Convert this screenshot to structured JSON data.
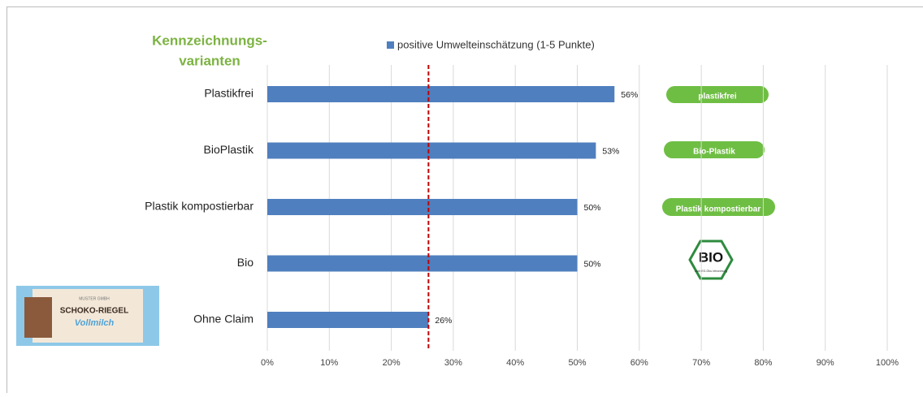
{
  "chart_data": {
    "type": "hbar",
    "title_lines": [
      "Kennzeichnungs-",
      "varianten"
    ],
    "categories": [
      "Plastikfrei",
      "BioPlastik",
      "Plastik kompostierbar",
      "Bio",
      "Ohne Claim"
    ],
    "series": [
      {
        "name": "positive Umwelteinschätzung (1-5 Punkte)",
        "color": "#4f7fbe",
        "values": [
          56,
          53,
          50,
          50,
          26
        ],
        "value_labels": [
          "56%",
          "53%",
          "50%",
          "50%",
          "26%"
        ]
      }
    ],
    "xlim": [
      0,
      100
    ],
    "xticks": [
      {
        "value": 0,
        "label": "0%"
      },
      {
        "value": 10,
        "label": "10%"
      },
      {
        "value": 20,
        "label": "20%"
      },
      {
        "value": 30,
        "label": "30%"
      },
      {
        "value": 40,
        "label": "40%"
      },
      {
        "value": 50,
        "label": "50%"
      },
      {
        "value": 60,
        "label": "60%"
      },
      {
        "value": 70,
        "label": "70%"
      },
      {
        "value": 80,
        "label": "80%"
      },
      {
        "value": 90,
        "label": "90%"
      },
      {
        "value": 100,
        "label": "100%"
      }
    ],
    "grid": true,
    "reference_line": 26,
    "reference_color": "#c00000",
    "title_color": "#7cb342"
  },
  "badges": [
    "plastikfrei",
    "Bio-Plastik",
    "Plastik kompostierbar"
  ],
  "bio_logo": {
    "title": "BIO",
    "subtitle": "nach EG-Öko-Verordnung"
  },
  "product": {
    "maker": "MUSTER GMBH",
    "name": "SCHOKO-RIEGEL",
    "variant": "Vollmilch"
  }
}
